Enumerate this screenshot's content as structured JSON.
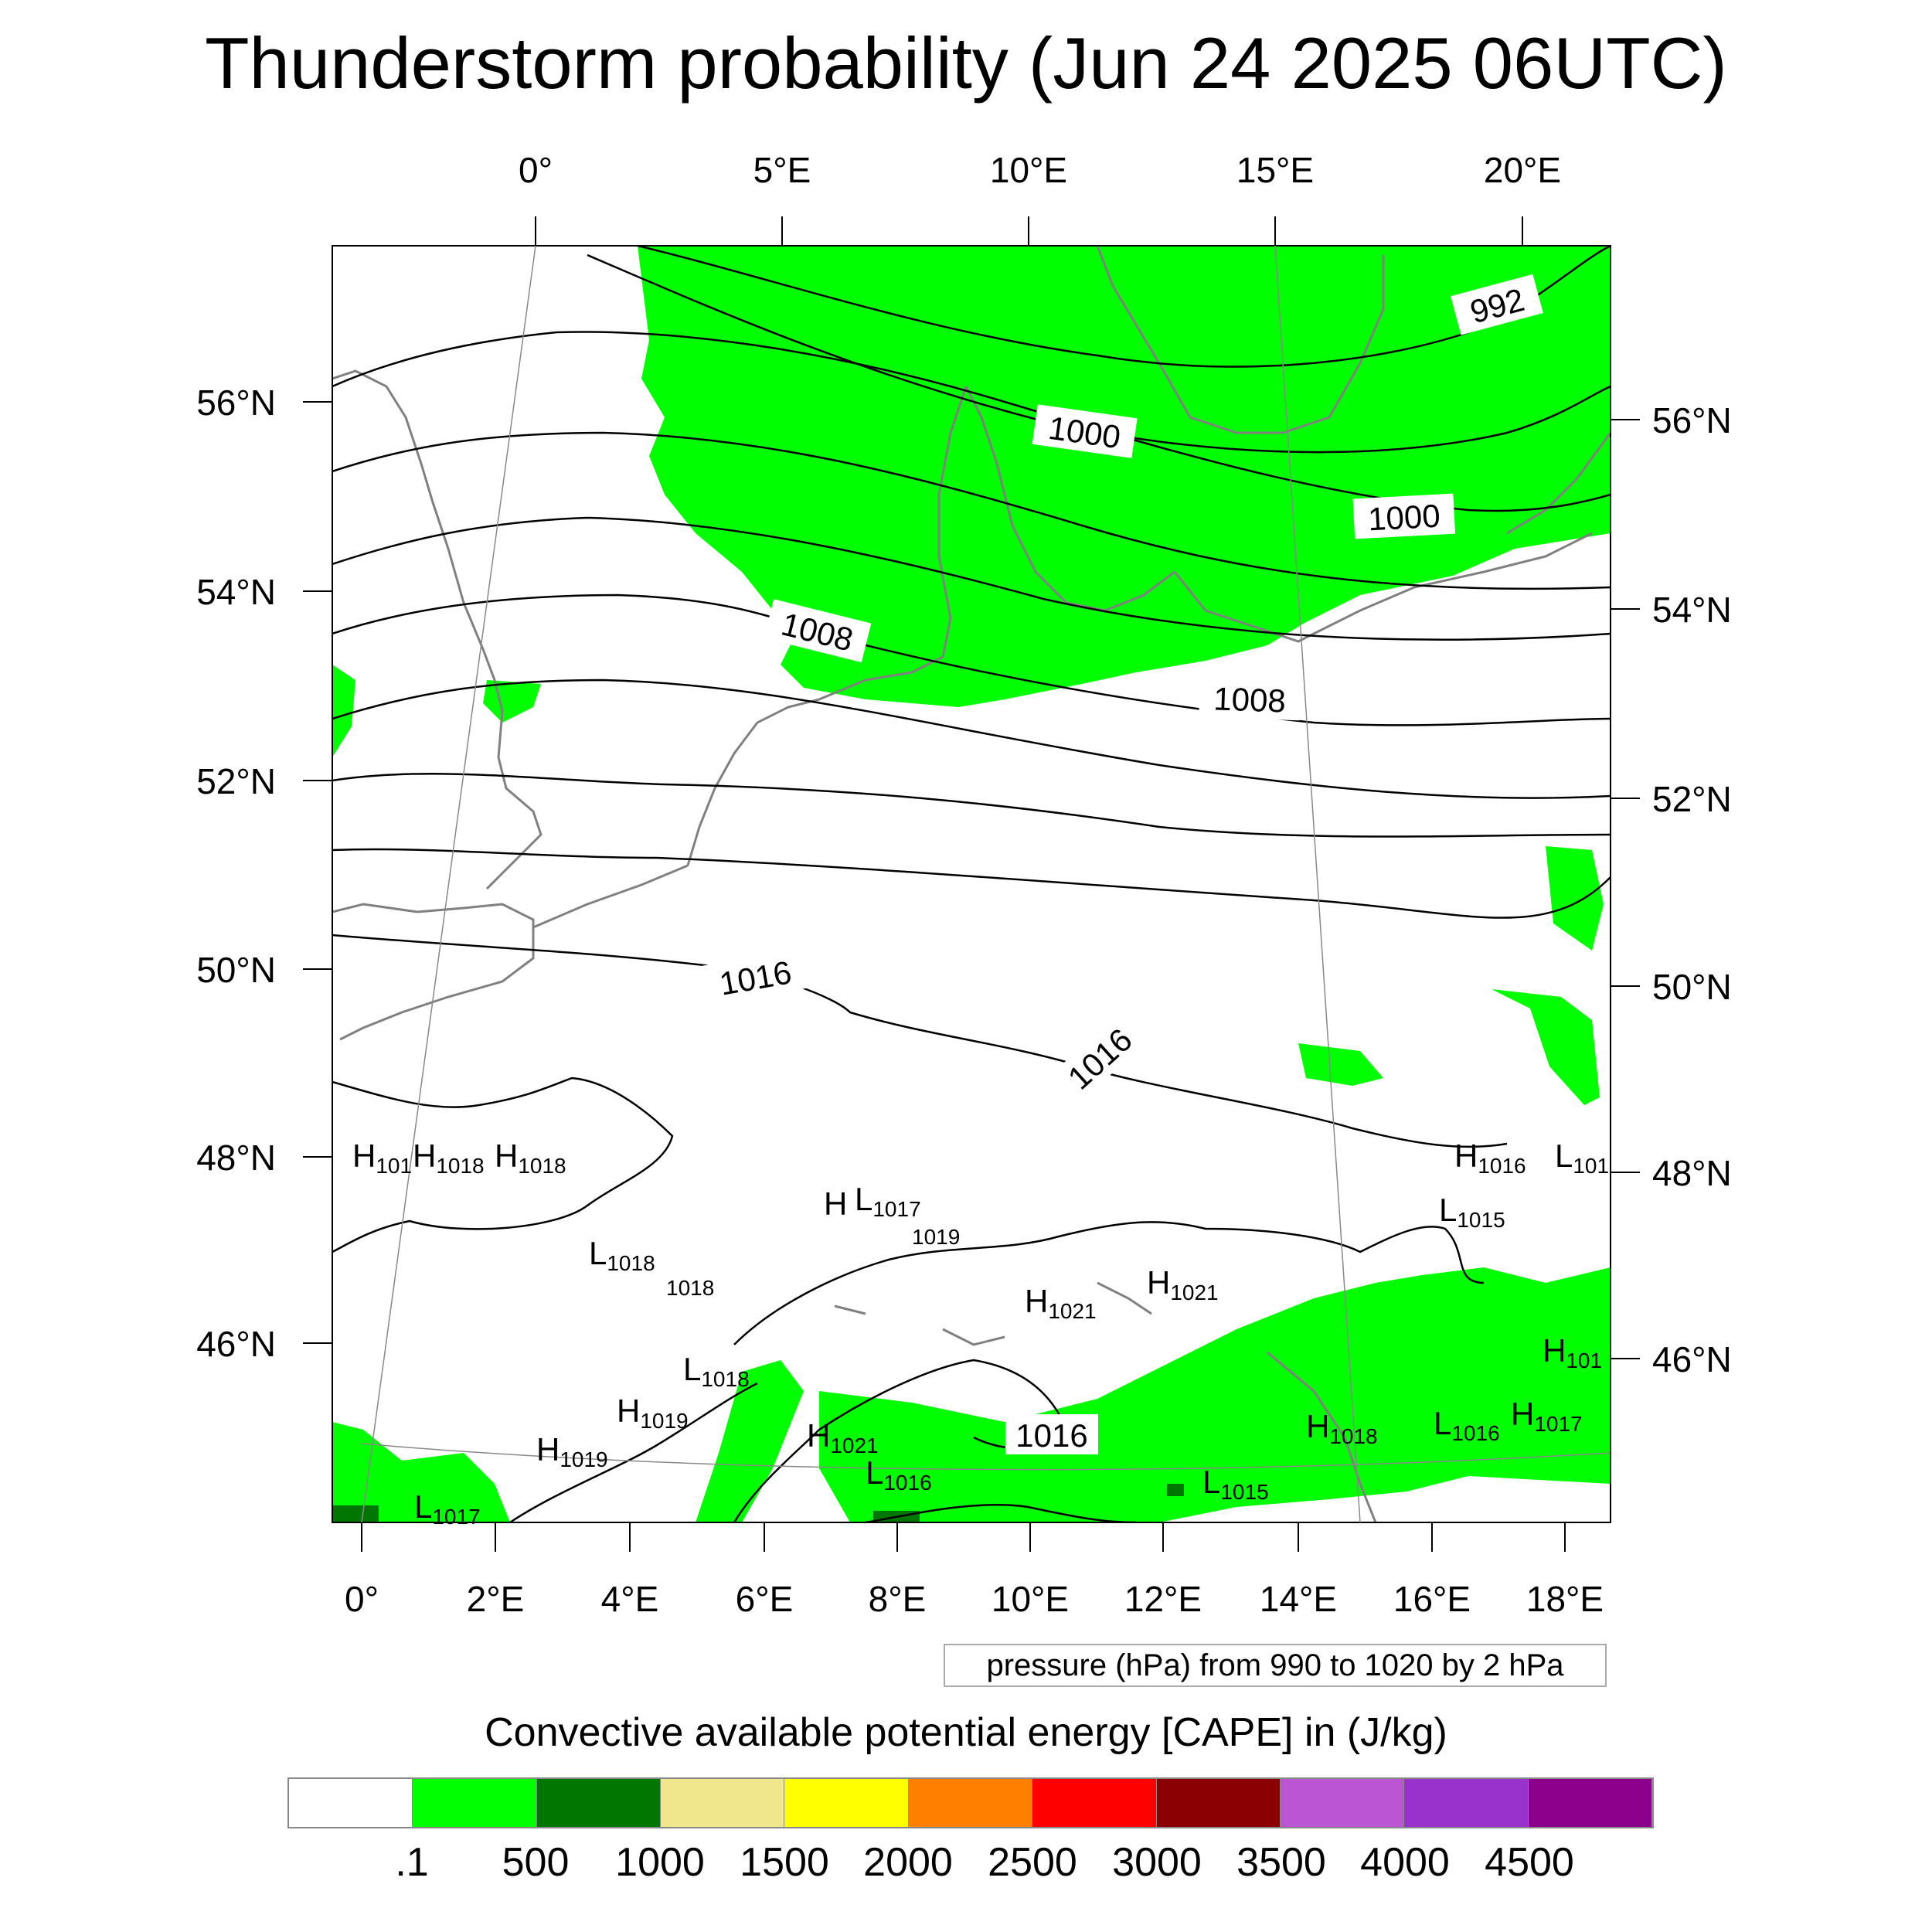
{
  "title": "Thunderstorm probability (Jun 24 2025 06UTC)",
  "map": {
    "region": "North Sea / Central Europe",
    "top_lon_labels": [
      "0°",
      "5°E",
      "10°E",
      "15°E",
      "20°E"
    ],
    "bottom_lon_labels": [
      "0°",
      "2°E",
      "4°E",
      "6°E",
      "8°E",
      "10°E",
      "12°E",
      "14°E",
      "16°E",
      "18°E"
    ],
    "left_lat_labels": [
      "56°N",
      "54°N",
      "52°N",
      "50°N",
      "48°N",
      "46°N"
    ],
    "right_lat_labels": [
      "56°N",
      "54°N",
      "52°N",
      "50°N",
      "48°N",
      "46°N"
    ],
    "isobar_labels": [
      "992",
      "1000",
      "1000",
      "1008",
      "1008",
      "1016",
      "1016",
      "1016"
    ],
    "pressure_centers": [
      {
        "type": "H",
        "value": "101"
      },
      {
        "type": "H",
        "value": "1018"
      },
      {
        "type": "H",
        "value": "1018"
      },
      {
        "type": "L",
        "value": "1018"
      },
      {
        "type": "",
        "value": "1018"
      },
      {
        "type": "H",
        "value": ""
      },
      {
        "type": "L",
        "value": "1017"
      },
      {
        "type": "",
        "value": "1019"
      },
      {
        "type": "H",
        "value": "1021"
      },
      {
        "type": "H",
        "value": "1021"
      },
      {
        "type": "L",
        "value": "1018"
      },
      {
        "type": "H",
        "value": "1019"
      },
      {
        "type": "H",
        "value": "1019"
      },
      {
        "type": "H",
        "value": "1021"
      },
      {
        "type": "L",
        "value": "1016"
      },
      {
        "type": "L",
        "value": "1017"
      },
      {
        "type": "L",
        "value": "1015"
      },
      {
        "type": "H",
        "value": "1018"
      },
      {
        "type": "L",
        "value": "1016"
      },
      {
        "type": "H",
        "value": "1017"
      },
      {
        "type": "H",
        "value": "101"
      },
      {
        "type": "H",
        "value": "1016"
      },
      {
        "type": "L",
        "value": "101"
      },
      {
        "type": "L",
        "value": "1015"
      }
    ],
    "colors": {
      "cape_01": "#00ff00",
      "cape_500": "#007700",
      "coast": "#808080",
      "isobar": "#000000"
    }
  },
  "note": "pressure (hPa) from 990 to 1020 by 2 hPa",
  "colorbar": {
    "title": "Convective available potential energy [CAPE] in (J/kg)",
    "colors": [
      "#ffffff",
      "#00ff00",
      "#007700",
      "#f0e68c",
      "#ffff00",
      "#ff8000",
      "#ff0000",
      "#8b0000",
      "#ba55d3",
      "#9932cc",
      "#8b008b"
    ],
    "tick_labels": [
      ".1",
      "500",
      "1000",
      "1500",
      "2000",
      "2500",
      "3000",
      "3500",
      "4000",
      "4500"
    ]
  }
}
